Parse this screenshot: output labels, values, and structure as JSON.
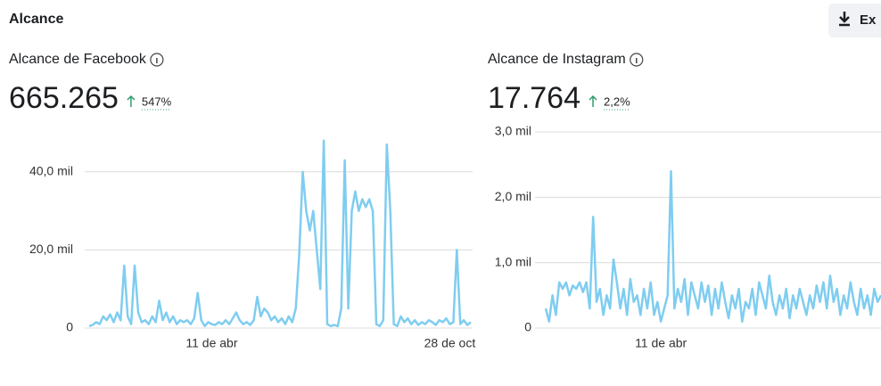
{
  "header": {
    "title": "Alcance",
    "button": "Ex"
  },
  "chart_data": [
    {
      "type": "line",
      "title": "Alcance de Facebook",
      "total": "665.265",
      "change": "547%",
      "categories": [
        null,
        null,
        null,
        null,
        null,
        null,
        null,
        null,
        null,
        null,
        null,
        null,
        null,
        null,
        null,
        null,
        null,
        null,
        null,
        null,
        null,
        null,
        null,
        null,
        null,
        null,
        null,
        null,
        null,
        null,
        null,
        null,
        null,
        null,
        null,
        "11 de abr",
        null,
        null,
        null,
        null,
        null,
        null,
        null,
        null,
        null,
        null,
        null,
        null,
        null,
        null,
        null,
        null,
        null,
        null,
        null,
        null,
        null,
        null,
        null,
        null,
        null,
        null,
        null,
        null,
        null,
        null,
        null,
        null,
        null,
        null,
        null,
        null,
        null,
        null,
        null,
        null,
        null,
        null,
        null,
        null,
        null,
        null,
        null,
        null,
        null,
        null,
        null,
        null,
        null,
        null,
        null,
        null,
        null,
        null,
        null,
        null,
        null,
        null,
        null,
        null,
        null,
        null,
        null,
        "28 de oct",
        null,
        null,
        null,
        null,
        null,
        null
      ],
      "series": [
        {
          "name": "Alcance de Facebook",
          "color": "#7fcdf0",
          "values": [
            500,
            800,
            1500,
            1000,
            3000,
            2000,
            3500,
            1500,
            4000,
            2000,
            16000,
            3000,
            1000,
            16000,
            4000,
            1500,
            2000,
            1000,
            3000,
            1500,
            7000,
            2000,
            4000,
            1500,
            3000,
            1000,
            2000,
            1500,
            2000,
            1000,
            2500,
            9000,
            2000,
            500,
            1500,
            1000,
            800,
            1500,
            1000,
            2000,
            1000,
            2500,
            4000,
            2000,
            1000,
            1500,
            800,
            2000,
            8000,
            3000,
            5000,
            4000,
            2000,
            3000,
            1500,
            2500,
            1000,
            3000,
            1500,
            5000,
            19000,
            40000,
            30000,
            25000,
            30000,
            20000,
            10000,
            48000,
            1000,
            500,
            800,
            500,
            5000,
            43000,
            5000,
            30000,
            35000,
            30000,
            33000,
            31000,
            33000,
            30000,
            1000,
            500,
            2000,
            47000,
            30000,
            1000,
            500,
            3000,
            1500,
            2500,
            1000,
            2000,
            800,
            1500,
            1000,
            2000,
            1500,
            800,
            2000,
            1500,
            2500,
            1000,
            1500,
            20000,
            1000,
            2000,
            800,
            1500
          ]
        }
      ],
      "ylim": [
        0,
        50000
      ],
      "yticks": [
        0,
        {
          "value": 20000,
          "label": "20,0 mil"
        },
        {
          "value": 40000,
          "label": "40,0 mil"
        }
      ],
      "grid": true
    },
    {
      "type": "line",
      "title": "Alcance de Instagram",
      "total": "17.764",
      "change": "2,2%",
      "categories": [
        null,
        null,
        null,
        null,
        null,
        null,
        null,
        null,
        null,
        null,
        null,
        null,
        null,
        null,
        null,
        null,
        null,
        null,
        null,
        null,
        null,
        null,
        null,
        null,
        null,
        null,
        null,
        null,
        null,
        null,
        null,
        null,
        null,
        null,
        "11 de abr",
        null,
        null,
        null,
        null,
        null,
        null,
        null,
        null,
        null,
        null,
        null,
        null,
        null,
        null,
        null,
        null,
        null,
        null,
        null,
        null,
        null,
        null,
        null,
        null,
        null,
        null,
        null,
        null,
        null,
        null,
        null,
        null,
        null,
        null,
        null,
        null,
        null,
        null,
        null,
        null,
        null,
        null,
        null,
        null,
        null,
        null,
        null,
        null,
        null,
        null,
        null,
        null,
        null,
        null,
        null,
        null,
        null,
        null,
        null,
        null,
        null,
        null,
        null,
        null,
        null
      ],
      "series": [
        {
          "name": "Alcance de Instagram",
          "color": "#7fcdf0",
          "values": [
            300,
            100,
            500,
            200,
            700,
            600,
            700,
            500,
            650,
            600,
            700,
            550,
            700,
            300,
            1700,
            400,
            600,
            200,
            500,
            300,
            1050,
            700,
            300,
            600,
            200,
            750,
            400,
            500,
            200,
            600,
            300,
            700,
            200,
            400,
            100,
            300,
            500,
            2400,
            300,
            600,
            400,
            750,
            200,
            700,
            500,
            300,
            700,
            400,
            650,
            200,
            600,
            300,
            700,
            400,
            150,
            500,
            300,
            600,
            100,
            400,
            300,
            600,
            200,
            700,
            500,
            300,
            800,
            400,
            200,
            500,
            300,
            600,
            150,
            500,
            300,
            600,
            400,
            200,
            500,
            300,
            650,
            400,
            700,
            300,
            800,
            400,
            600,
            200,
            500,
            300,
            700,
            400,
            200,
            600,
            300,
            500,
            200,
            600,
            400,
            500
          ]
        }
      ],
      "ylim": [
        0,
        3000
      ],
      "yticks": [
        0,
        {
          "value": 1000,
          "label": "1,0 mil"
        },
        {
          "value": 2000,
          "label": "2,0 mil"
        },
        {
          "value": 3000,
          "label": "3,0 mil"
        }
      ],
      "grid": true
    }
  ]
}
